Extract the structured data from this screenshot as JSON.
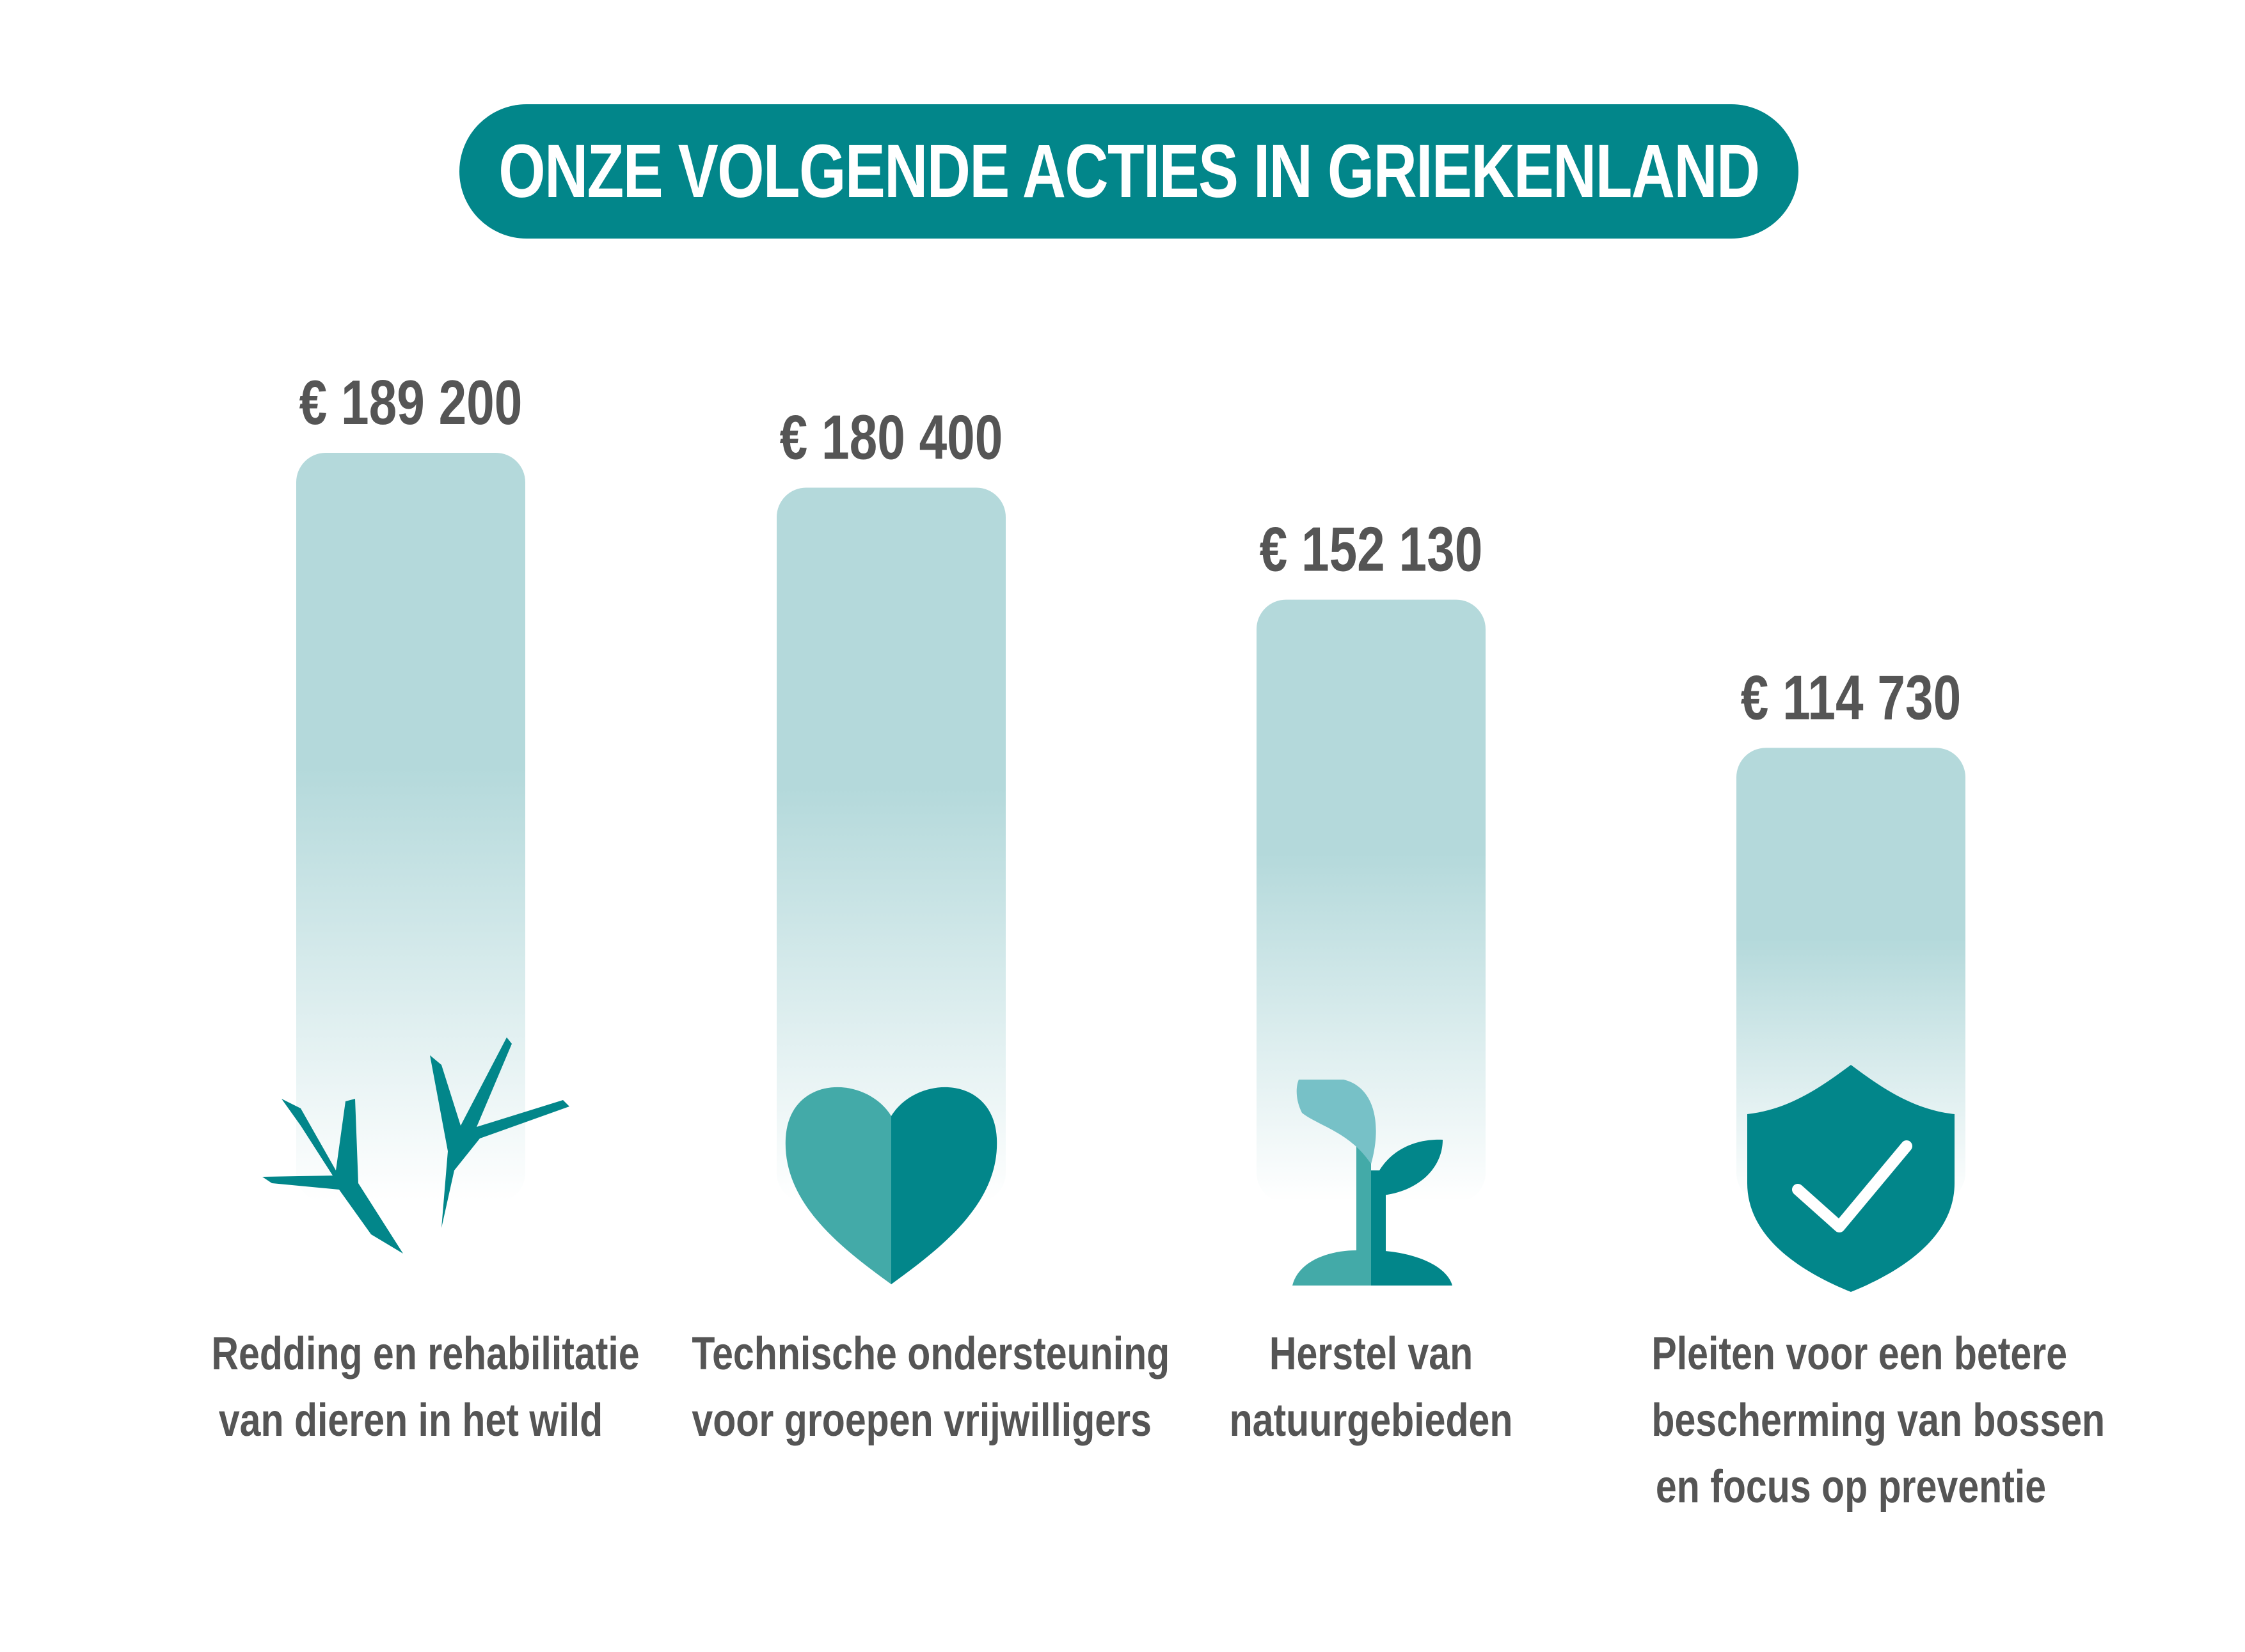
{
  "title": "ONZE VOLGENDE ACTIES IN GRIEKENLAND",
  "colors": {
    "teal": "#02868a",
    "teal_mid": "#43aaa8",
    "teal_light": "#77c1c7",
    "bar_top": "#b4d9db",
    "value_text": "#555555",
    "label_text": "#555555"
  },
  "chart_data": {
    "type": "bar",
    "categories": [
      "Redding en rehabilitatie van dieren in het wild",
      "Technische ondersteuning voor groepen vrijwilligers",
      "Herstel van natuurgebieden",
      "Pleiten voor een betere bescherming van bossen en focus op preventie"
    ],
    "values": [
      189200,
      180400,
      152130,
      114730
    ],
    "value_labels": [
      "€ 189 200",
      "€ 180 400",
      "€ 152 130",
      "€ 114 730"
    ],
    "label_lines": [
      [
        "Redding en rehabilitatie",
        "van dieren in het wild"
      ],
      [
        "Technische ondersteuning",
        "voor groepen vrijwilligers"
      ],
      [
        "Herstel van",
        "natuurgebieden"
      ],
      [
        "Pleiten voor een betere",
        "bescherming van bossen",
        "en focus op preventie"
      ]
    ],
    "icons": [
      "bird-footprints-icon",
      "heart-icon",
      "sprout-icon",
      "shield-check-icon"
    ],
    "title": "ONZE VOLGENDE ACTIES IN GRIEKENLAND",
    "xlabel": "",
    "ylabel": "",
    "grid": false,
    "legend": "none"
  }
}
